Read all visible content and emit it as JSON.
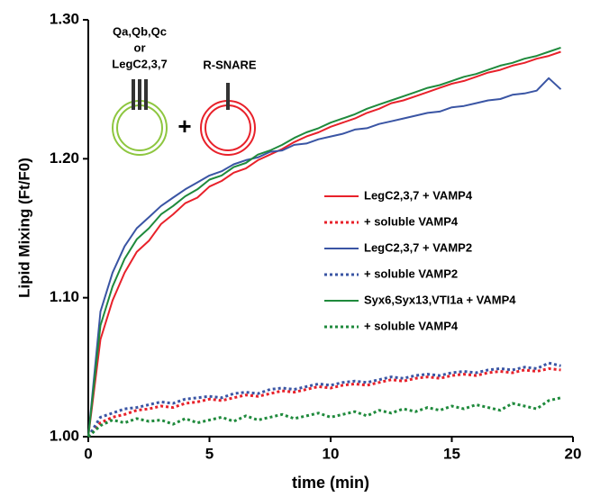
{
  "chart_data": {
    "type": "line",
    "x_label": "time (min)",
    "y_label": "Lipid Mixing (Ft/F0)",
    "annotations": [
      "Qa,Qb,Qc",
      "or",
      "LegC2,3,7",
      "R-SNARE",
      "+"
    ],
    "xlim": [
      0,
      20
    ],
    "xticks": [
      0,
      5,
      10,
      15,
      20
    ],
    "ylim": [
      1,
      1.3
    ],
    "yticks": [
      {
        "value": 1,
        "label": "1.00"
      },
      {
        "value": 1.1,
        "label": "1.10"
      },
      {
        "value": 1.2,
        "label": "1.20"
      },
      {
        "value": 1.3,
        "label": "1.30"
      }
    ],
    "legend": "center right",
    "x": [
      0,
      0.5,
      1,
      1.5,
      2,
      2.5,
      3,
      3.5,
      4,
      4.5,
      5,
      5.5,
      6,
      6.5,
      7,
      7.5,
      8,
      8.5,
      9,
      9.5,
      10,
      10.5,
      11,
      11.5,
      12,
      12.5,
      13,
      13.5,
      14,
      14.5,
      15,
      15.5,
      16,
      16.5,
      17,
      17.5,
      18,
      18.5,
      19,
      19.5
    ],
    "series": [
      {
        "name": "LegC2,3,7 + VAMP4",
        "color": "#e8212a",
        "dashed": false,
        "values": [
          1.0,
          1.07,
          1.098,
          1.118,
          1.133,
          1.141,
          1.153,
          1.16,
          1.168,
          1.172,
          1.18,
          1.184,
          1.19,
          1.193,
          1.199,
          1.203,
          1.207,
          1.212,
          1.216,
          1.219,
          1.223,
          1.226,
          1.229,
          1.233,
          1.236,
          1.24,
          1.242,
          1.245,
          1.248,
          1.251,
          1.254,
          1.256,
          1.259,
          1.262,
          1.264,
          1.267,
          1.269,
          1.272,
          1.274,
          1.277
        ]
      },
      {
        "name": "+ soluble VAMP4",
        "color": "#e8212a",
        "dashed": true,
        "values": [
          1.0,
          1.01,
          1.014,
          1.016,
          1.019,
          1.02,
          1.022,
          1.021,
          1.024,
          1.025,
          1.027,
          1.026,
          1.028,
          1.03,
          1.029,
          1.031,
          1.033,
          1.032,
          1.034,
          1.036,
          1.035,
          1.037,
          1.038,
          1.037,
          1.039,
          1.041,
          1.04,
          1.042,
          1.043,
          1.042,
          1.044,
          1.045,
          1.044,
          1.046,
          1.047,
          1.046,
          1.048,
          1.047,
          1.049,
          1.048
        ]
      },
      {
        "name": "LegC2,3,7 + VAMP2",
        "color": "#3a55a4",
        "dashed": false,
        "values": [
          1.0,
          1.09,
          1.118,
          1.137,
          1.15,
          1.158,
          1.166,
          1.172,
          1.178,
          1.183,
          1.188,
          1.191,
          1.196,
          1.199,
          1.201,
          1.205,
          1.206,
          1.21,
          1.211,
          1.214,
          1.216,
          1.218,
          1.221,
          1.222,
          1.225,
          1.227,
          1.229,
          1.231,
          1.233,
          1.234,
          1.237,
          1.238,
          1.24,
          1.242,
          1.243,
          1.246,
          1.247,
          1.249,
          1.258,
          1.25
        ]
      },
      {
        "name": "+ soluble VAMP2",
        "color": "#3a55a4",
        "dashed": true,
        "values": [
          1.0,
          1.014,
          1.017,
          1.02,
          1.021,
          1.023,
          1.025,
          1.024,
          1.027,
          1.028,
          1.029,
          1.028,
          1.031,
          1.032,
          1.031,
          1.034,
          1.035,
          1.034,
          1.036,
          1.038,
          1.037,
          1.039,
          1.04,
          1.039,
          1.041,
          1.043,
          1.042,
          1.044,
          1.045,
          1.044,
          1.046,
          1.047,
          1.046,
          1.048,
          1.049,
          1.048,
          1.05,
          1.049,
          1.053,
          1.051
        ]
      },
      {
        "name": "Syx6,Syx13,VTI1a + VAMP4",
        "color": "#1f8a3c",
        "dashed": false,
        "values": [
          1.0,
          1.08,
          1.108,
          1.128,
          1.142,
          1.15,
          1.16,
          1.166,
          1.173,
          1.178,
          1.185,
          1.188,
          1.194,
          1.197,
          1.203,
          1.206,
          1.21,
          1.215,
          1.219,
          1.222,
          1.226,
          1.229,
          1.232,
          1.236,
          1.239,
          1.242,
          1.245,
          1.248,
          1.251,
          1.253,
          1.256,
          1.259,
          1.261,
          1.264,
          1.267,
          1.269,
          1.272,
          1.274,
          1.277,
          1.28
        ]
      },
      {
        "name": "+ soluble VAMP4",
        "color": "#1f8a3c",
        "dashed": true,
        "values": [
          1.0,
          1.008,
          1.012,
          1.01,
          1.013,
          1.011,
          1.012,
          1.009,
          1.013,
          1.01,
          1.012,
          1.014,
          1.011,
          1.015,
          1.012,
          1.014,
          1.016,
          1.013,
          1.015,
          1.017,
          1.014,
          1.016,
          1.018,
          1.015,
          1.019,
          1.017,
          1.02,
          1.018,
          1.021,
          1.019,
          1.022,
          1.02,
          1.023,
          1.021,
          1.019,
          1.024,
          1.022,
          1.02,
          1.026,
          1.028
        ]
      }
    ]
  }
}
